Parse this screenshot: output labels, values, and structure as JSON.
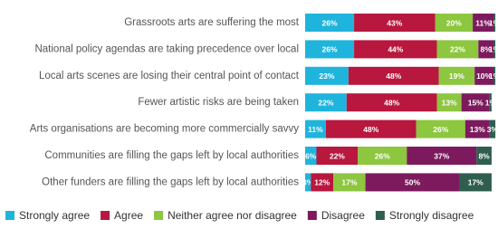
{
  "chart_data": {
    "type": "stacked-barh",
    "categories": [
      "Grassroots arts are suffering the most",
      "National policy agendas are taking precedence over local",
      "Local arts scenes are losing their central point of contact",
      "Fewer artistic risks are being taken",
      "Arts organisations are becoming more commercially savvy",
      "Communities are filling the gaps left by local authorities",
      "Other funders are filling the gaps left by local authorities"
    ],
    "series": [
      {
        "name": "Strongly agree",
        "color": "#1fb4dc",
        "values": [
          26,
          26,
          23,
          22,
          11,
          6,
          3
        ],
        "value_labels": [
          "26%",
          "26%",
          "23%",
          "22%",
          "11%",
          "6%",
          "3%"
        ]
      },
      {
        "name": "Agree",
        "color": "#b8173e",
        "values": [
          43,
          44,
          48,
          48,
          48,
          22,
          12
        ],
        "value_labels": [
          "43%",
          "44%",
          "48%",
          "48%",
          "48%",
          "22%",
          "12%"
        ]
      },
      {
        "name": "Neither agree nor disagree",
        "color": "#8dc63f",
        "values": [
          20,
          22,
          19,
          13,
          26,
          26,
          17
        ],
        "value_labels": [
          "20%",
          "22%",
          "19%",
          "13%",
          "26%",
          "26%",
          "17%"
        ]
      },
      {
        "name": "Disagree",
        "color": "#7d1a5e",
        "values": [
          11,
          8,
          10,
          15,
          13,
          37,
          50
        ],
        "value_labels": [
          "11%",
          "8%",
          "10%",
          "15%",
          "13%",
          "37%",
          "50%"
        ]
      },
      {
        "name": "Strongly disagree",
        "color": "#2e5e4e",
        "values": [
          1,
          1,
          1,
          1,
          3,
          8,
          17
        ],
        "value_labels": [
          "1%",
          "1%",
          "1%",
          "1%",
          "3%",
          "8%",
          "17%"
        ]
      }
    ],
    "xlim": [
      0,
      100
    ],
    "legend": "bottom"
  }
}
